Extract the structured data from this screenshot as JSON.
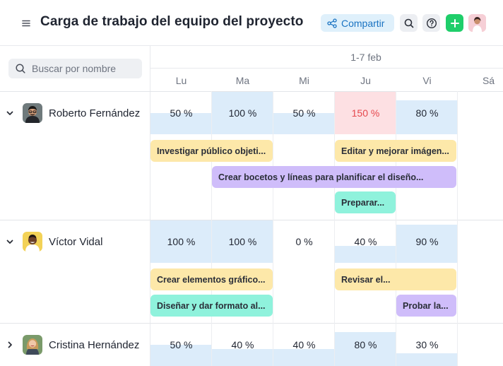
{
  "header": {
    "title": "Carga de trabajo del equipo del proyecto",
    "share_label": "Compartir",
    "icons": [
      "menu-icon",
      "share-icon",
      "search-icon",
      "help-icon",
      "plus-icon"
    ]
  },
  "search": {
    "placeholder": "Buscar por nombre",
    "value": ""
  },
  "timeline": {
    "week_label": "1-7 feb",
    "days": [
      "Lu",
      "Ma",
      "Mi",
      "Ju",
      "Vi",
      "Sá"
    ]
  },
  "people": [
    {
      "name": "Roberto Fernández",
      "expanded": true,
      "loads": [
        "50 %",
        "100 %",
        "50 %",
        "150 %",
        "80 %"
      ],
      "load_fraction": [
        0.5,
        1.0,
        0.5,
        1.5,
        0.8
      ],
      "tasks": [
        "Investigar público objeti...",
        "Editar y mejorar imágen...",
        "Crear bocetos y líneas para planificar el diseño...",
        "Preparar..."
      ]
    },
    {
      "name": "Víctor Vidal",
      "expanded": true,
      "loads": [
        "100 %",
        "100 %",
        "0 %",
        "40 %",
        "90 %"
      ],
      "load_fraction": [
        1.0,
        1.0,
        0.0,
        0.4,
        0.9
      ],
      "tasks": [
        "Crear elementos gráfico...",
        "Revisar el...",
        "Diseñar y dar formato al...",
        "Probar la..."
      ]
    },
    {
      "name": "Cristina Hernández",
      "expanded": false,
      "loads": [
        "50 %",
        "40 %",
        "40 %",
        "80 %",
        "30 %"
      ],
      "load_fraction": [
        0.5,
        0.4,
        0.4,
        0.8,
        0.3
      ],
      "tasks": []
    }
  ],
  "colors": {
    "load": "#dcecfa",
    "overload": "#fde0e3",
    "overload_text": "#e5484d",
    "task_yellow": "#fde8a9",
    "task_purple": "#cfbdfa",
    "task_teal": "#8ff2dc",
    "add_button": "#1fce6a"
  }
}
